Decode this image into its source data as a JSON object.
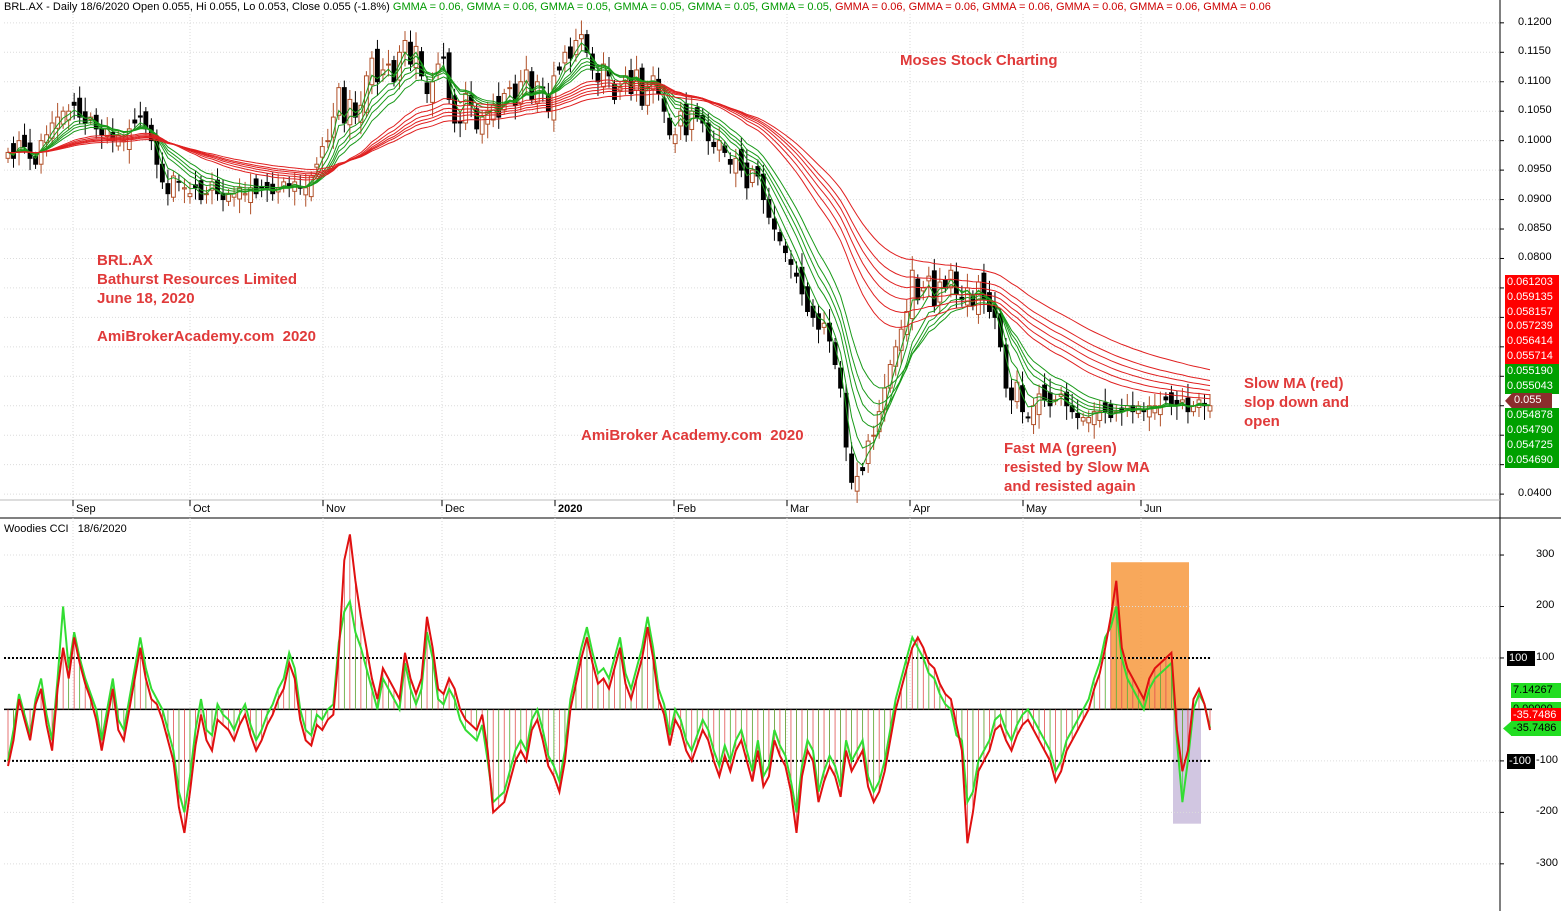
{
  "header": {
    "prefix": "BRL.AX - Daily 18/6/2020 Open 0.055, Hi 0.055, Lo 0.053, Close 0.055 (-1.8%)",
    "gmma": [
      {
        "text": "GMMA = 0.06,",
        "color": "green"
      },
      {
        "text": "GMMA = 0.06,",
        "color": "green"
      },
      {
        "text": "GMMA = 0.05,",
        "color": "green"
      },
      {
        "text": "GMMA = 0.05,",
        "color": "green"
      },
      {
        "text": "GMMA = 0.05,",
        "color": "green"
      },
      {
        "text": "GMMA = 0.05,",
        "color": "green"
      },
      {
        "text": "GMMA = 0.06,",
        "color": "red"
      },
      {
        "text": "GMMA = 0.06,",
        "color": "red"
      },
      {
        "text": "GMMA = 0.06,",
        "color": "red"
      },
      {
        "text": "GMMA = 0.06,",
        "color": "red"
      },
      {
        "text": "GMMA = 0.06,",
        "color": "red"
      },
      {
        "text": "GMMA = 0.06",
        "color": "red"
      }
    ]
  },
  "annotations": {
    "moses": "Moses Stock Charting",
    "ticker": "BRL.AX",
    "company": "Bathurst Resources Limited",
    "date": "June 18, 2020",
    "site1": "AmiBrokerAcademy.com  2020",
    "site2": "AmiBroker Academy.com  2020",
    "fast_ma": "Fast MA (green)\nresisted by Slow MA\nand resisted again",
    "slow_ma": "Slow MA (red)\nslop down and\nopen"
  },
  "chart_data": [
    {
      "type": "candlestick",
      "panel": "price",
      "ticker": "BRL.AX",
      "x_tick_labels": [
        "Sep",
        "Oct",
        "Nov",
        "Dec",
        "2020",
        "Feb",
        "Mar",
        "Apr",
        "May",
        "Jun"
      ],
      "ylim": [
        0.039,
        0.1215
      ],
      "y_ticks": [
        0.04,
        0.045,
        0.05,
        0.055,
        0.06,
        0.065,
        0.07,
        0.075,
        0.08,
        0.085,
        0.09,
        0.095,
        0.1,
        0.105,
        0.11,
        0.115,
        0.12
      ],
      "y_tick_labels": [
        "0.0400",
        "",
        "",
        "",
        "",
        "",
        "",
        "",
        "0.0800",
        "0.0850",
        "0.0900",
        "0.0950",
        "0.1000",
        "0.1050",
        "0.1100",
        "0.1150",
        "0.1200"
      ],
      "close_approx": [
        0.098,
        0.097,
        0.1,
        0.099,
        0.097,
        0.096,
        0.1,
        0.101,
        0.103,
        0.104,
        0.105,
        0.105,
        0.106,
        0.104,
        0.103,
        0.104,
        0.102,
        0.101,
        0.102,
        0.1,
        0.101,
        0.1,
        0.102,
        0.103,
        0.104,
        0.102,
        0.1,
        0.096,
        0.093,
        0.091,
        0.094,
        0.093,
        0.092,
        0.091,
        0.092,
        0.09,
        0.091,
        0.093,
        0.091,
        0.09,
        0.091,
        0.091,
        0.092,
        0.091,
        0.092,
        0.091,
        0.092,
        0.092,
        0.091,
        0.092,
        0.093,
        0.092,
        0.093,
        0.092,
        0.092,
        0.094,
        0.096,
        0.099,
        0.1,
        0.104,
        0.109,
        0.103,
        0.107,
        0.104,
        0.106,
        0.111,
        0.114,
        0.11,
        0.112,
        0.113,
        0.11,
        0.115,
        0.117,
        0.113,
        0.116,
        0.111,
        0.108,
        0.11,
        0.113,
        0.114,
        0.107,
        0.103,
        0.103,
        0.108,
        0.106,
        0.102,
        0.104,
        0.105,
        0.106,
        0.104,
        0.108,
        0.109,
        0.106,
        0.11,
        0.112,
        0.107,
        0.11,
        0.109,
        0.105,
        0.111,
        0.112,
        0.115,
        0.114,
        0.117,
        0.118,
        0.115,
        0.112,
        0.11,
        0.113,
        0.111,
        0.107,
        0.109,
        0.111,
        0.108,
        0.112,
        0.106,
        0.109,
        0.111,
        0.108,
        0.105,
        0.101,
        0.101,
        0.105,
        0.101,
        0.105,
        0.104,
        0.103,
        0.1,
        0.099,
        0.1,
        0.098,
        0.096,
        0.097,
        0.095,
        0.092,
        0.095,
        0.094,
        0.09,
        0.087,
        0.085,
        0.083,
        0.081,
        0.079,
        0.077,
        0.074,
        0.071,
        0.07,
        0.068,
        0.069,
        0.066,
        0.062,
        0.058,
        0.048,
        0.042,
        0.043,
        0.044,
        0.049,
        0.05,
        0.054,
        0.058,
        0.062,
        0.065,
        0.068,
        0.071,
        0.078,
        0.073,
        0.075,
        0.077,
        0.072,
        0.076,
        0.075,
        0.078,
        0.074,
        0.073,
        0.075,
        0.072,
        0.076,
        0.073,
        0.071,
        0.07,
        0.065,
        0.058,
        0.056,
        0.059,
        0.054,
        0.053,
        0.055,
        0.057,
        0.056,
        0.055,
        0.056,
        0.057,
        0.055,
        0.054,
        0.053,
        0.053,
        0.053,
        0.054,
        0.054,
        0.054,
        0.053,
        0.054,
        0.054,
        0.055,
        0.054,
        0.055,
        0.054,
        0.055,
        0.055,
        0.055,
        0.056,
        0.055,
        0.055,
        0.056,
        0.054,
        0.055,
        0.056,
        0.055,
        0.055
      ],
      "gmma_current": [
        0.06,
        0.06,
        0.05,
        0.05,
        0.05,
        0.05,
        0.06,
        0.06,
        0.06,
        0.06,
        0.06,
        0.06
      ],
      "right_axis_tags": [
        {
          "text": "0.061203",
          "color": "red"
        },
        {
          "text": "0.059135",
          "color": "red"
        },
        {
          "text": "0.058157",
          "color": "red"
        },
        {
          "text": "0.057239",
          "color": "red"
        },
        {
          "text": "0.056414",
          "color": "red"
        },
        {
          "text": "0.055714",
          "color": "red"
        },
        {
          "text": "0.055190",
          "color": "green"
        },
        {
          "text": "0.055043",
          "color": "green"
        },
        {
          "text": "0.055",
          "color": "current"
        },
        {
          "text": "0.054878",
          "color": "green"
        },
        {
          "text": "0.054790",
          "color": "green"
        },
        {
          "text": "0.054725",
          "color": "green"
        },
        {
          "text": "0.054690",
          "color": "green"
        }
      ],
      "colors": {
        "fast_ma": "#1a9a1a",
        "slow_ma": "#e02020",
        "up_candle": "#b05028",
        "down_candle": "#000000"
      }
    },
    {
      "type": "line",
      "panel": "indicator",
      "title": "Woodies CCI",
      "date": "18/6/2020",
      "ylim": [
        -380,
        370
      ],
      "y_ticks": [
        300,
        200,
        100,
        -100,
        -200,
        -300
      ],
      "y_tick_labels": [
        "300",
        "200",
        "100",
        "-100",
        "-200",
        "-300"
      ],
      "reference_lines": [
        100,
        0,
        -100
      ],
      "markers": [
        {
          "text": "100",
          "color": "black"
        },
        {
          "text": "-100",
          "color": "black"
        }
      ],
      "value_tags": [
        {
          "text": "7.14267",
          "color": "lime"
        },
        {
          "text": "0.00000",
          "color": "lime"
        },
        {
          "text": "-35.7486",
          "color": "red"
        },
        {
          "text": "-35.7486",
          "color": "lime"
        }
      ],
      "series": [
        {
          "color": "red",
          "values": [
            -110,
            -60,
            20,
            -20,
            -60,
            10,
            40,
            -30,
            -80,
            40,
            120,
            60,
            140,
            90,
            50,
            20,
            -20,
            -80,
            -20,
            40,
            -40,
            -60,
            0,
            60,
            120,
            60,
            20,
            10,
            -20,
            -60,
            -100,
            -190,
            -240,
            -160,
            -70,
            -10,
            -60,
            -80,
            -20,
            -30,
            -40,
            -60,
            -30,
            -10,
            -50,
            -80,
            -60,
            -30,
            -10,
            20,
            40,
            90,
            60,
            -20,
            -60,
            -70,
            -30,
            -40,
            -20,
            -10,
            110,
            290,
            340,
            250,
            180,
            120,
            60,
            20,
            80,
            60,
            40,
            20,
            110,
            60,
            30,
            60,
            180,
            120,
            40,
            30,
            60,
            40,
            0,
            -20,
            -30,
            -40,
            -10,
            -80,
            -200,
            -190,
            -180,
            -140,
            -100,
            -80,
            -100,
            -40,
            -20,
            -60,
            -110,
            -130,
            -160,
            -100,
            0,
            50,
            100,
            140,
            90,
            50,
            60,
            40,
            80,
            120,
            50,
            20,
            60,
            100,
            160,
            100,
            20,
            -10,
            -70,
            -20,
            -40,
            -80,
            -100,
            -70,
            -40,
            -60,
            -100,
            -130,
            -90,
            -120,
            -80,
            -60,
            -100,
            -140,
            -80,
            -150,
            -130,
            -60,
            -90,
            -110,
            -160,
            -240,
            -130,
            -80,
            -100,
            -180,
            -140,
            -110,
            -130,
            -170,
            -80,
            -120,
            -100,
            -80,
            -150,
            -180,
            -160,
            -120,
            -60,
            0,
            40,
            80,
            120,
            140,
            120,
            90,
            80,
            50,
            30,
            20,
            -30,
            -80,
            -260,
            -200,
            -120,
            -100,
            -80,
            -40,
            -30,
            -60,
            -80,
            -50,
            -30,
            -20,
            -40,
            -60,
            -80,
            -100,
            -140,
            -120,
            -80,
            -60,
            -40,
            -20,
            0,
            40,
            70,
            120,
            180,
            250,
            120,
            80,
            60,
            40,
            20,
            60,
            80,
            90,
            100,
            110,
            -40,
            -120,
            -80,
            20,
            40,
            10,
            -40
          ]
        },
        {
          "color": "green",
          "values": [
            -100,
            -40,
            30,
            -10,
            -50,
            20,
            60,
            -10,
            -60,
            60,
            200,
            80,
            150,
            100,
            60,
            30,
            0,
            -60,
            0,
            60,
            -20,
            -40,
            20,
            80,
            140,
            80,
            40,
            20,
            0,
            -40,
            -80,
            -160,
            -200,
            -130,
            -40,
            20,
            -40,
            -50,
            10,
            -10,
            -20,
            -40,
            -10,
            10,
            -30,
            -60,
            -40,
            -10,
            10,
            40,
            60,
            110,
            80,
            0,
            -40,
            -50,
            -10,
            -20,
            0,
            10,
            130,
            190,
            210,
            150,
            120,
            80,
            40,
            0,
            60,
            40,
            20,
            0,
            90,
            40,
            10,
            40,
            150,
            100,
            20,
            10,
            40,
            20,
            -20,
            -40,
            -50,
            -60,
            -30,
            -100,
            -180,
            -170,
            -160,
            -120,
            -80,
            -60,
            -80,
            -20,
            0,
            -40,
            -90,
            -110,
            -140,
            -80,
            20,
            70,
            120,
            160,
            110,
            70,
            80,
            60,
            100,
            140,
            70,
            40,
            80,
            120,
            180,
            120,
            40,
            10,
            -50,
            0,
            -20,
            -60,
            -80,
            -50,
            -20,
            -40,
            -80,
            -110,
            -70,
            -100,
            -60,
            -40,
            -80,
            -120,
            -60,
            -130,
            -110,
            -40,
            -70,
            -90,
            -140,
            -200,
            -110,
            -60,
            -80,
            -160,
            -120,
            -90,
            -110,
            -150,
            -60,
            -100,
            -80,
            -60,
            -130,
            -160,
            -140,
            -100,
            -40,
            20,
            60,
            100,
            140,
            120,
            100,
            70,
            60,
            30,
            10,
            0,
            -50,
            -60,
            -180,
            -160,
            -100,
            -80,
            -60,
            -20,
            -10,
            -40,
            -60,
            -30,
            -10,
            0,
            -20,
            -40,
            -60,
            -80,
            -120,
            -100,
            -60,
            -40,
            -20,
            0,
            20,
            60,
            90,
            140,
            160,
            200,
            100,
            60,
            40,
            20,
            0,
            40,
            60,
            70,
            80,
            90,
            -60,
            -180,
            -100,
            0,
            30,
            10,
            -36
          ]
        }
      ],
      "highlights": [
        {
          "color": "#f7993e"
        },
        {
          "color": "#c9bcdc"
        }
      ]
    }
  ]
}
